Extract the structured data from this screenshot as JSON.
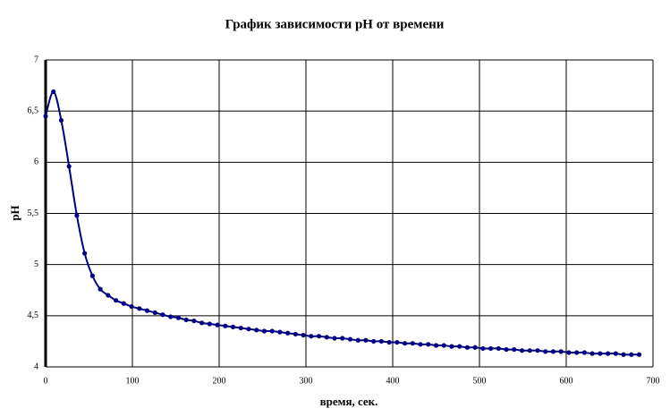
{
  "chart_data": {
    "type": "line",
    "title": "График зависимости pH от времени",
    "xlabel": "время, сек.",
    "ylabel": "pH",
    "x": [
      0,
      9,
      18,
      27,
      36,
      45,
      54,
      63,
      72,
      81,
      90,
      99,
      108,
      117,
      126,
      135,
      144,
      153,
      162,
      171,
      180,
      189,
      198,
      207,
      216,
      225,
      234,
      243,
      252,
      261,
      270,
      279,
      288,
      297,
      306,
      315,
      324,
      333,
      342,
      351,
      360,
      369,
      378,
      387,
      396,
      405,
      414,
      423,
      432,
      441,
      450,
      459,
      468,
      477,
      486,
      495,
      504,
      513,
      522,
      531,
      540,
      549,
      558,
      567,
      576,
      585,
      594,
      603,
      612,
      621,
      630,
      639,
      648,
      657,
      666,
      675,
      684
    ],
    "series": [
      {
        "name": "pH",
        "color": "#000080",
        "values": [
          6.45,
          6.69,
          6.41,
          5.96,
          5.48,
          5.11,
          4.89,
          4.76,
          4.7,
          4.65,
          4.62,
          4.59,
          4.57,
          4.55,
          4.53,
          4.51,
          4.49,
          4.48,
          4.46,
          4.45,
          4.43,
          4.42,
          4.41,
          4.4,
          4.39,
          4.38,
          4.37,
          4.36,
          4.35,
          4.35,
          4.34,
          4.33,
          4.32,
          4.31,
          4.3,
          4.3,
          4.29,
          4.28,
          4.28,
          4.27,
          4.26,
          4.26,
          4.25,
          4.25,
          4.24,
          4.24,
          4.23,
          4.23,
          4.22,
          4.22,
          4.21,
          4.21,
          4.2,
          4.2,
          4.19,
          4.19,
          4.18,
          4.18,
          4.18,
          4.17,
          4.17,
          4.16,
          4.16,
          4.16,
          4.15,
          4.15,
          4.15,
          4.14,
          4.14,
          4.14,
          4.13,
          4.13,
          4.13,
          4.13,
          4.12,
          4.12,
          4.12
        ]
      }
    ],
    "xlim": [
      0,
      700
    ],
    "xticks": [
      0,
      100,
      200,
      300,
      400,
      500,
      600,
      700
    ],
    "ylim": [
      4,
      7
    ],
    "yticks": [
      4,
      {
        "value": 4.5,
        "label": "4,5"
      },
      5,
      {
        "value": 5.5,
        "label": "5,5"
      },
      6,
      {
        "value": 6.5,
        "label": "6,5"
      },
      7
    ],
    "grid": true
  }
}
